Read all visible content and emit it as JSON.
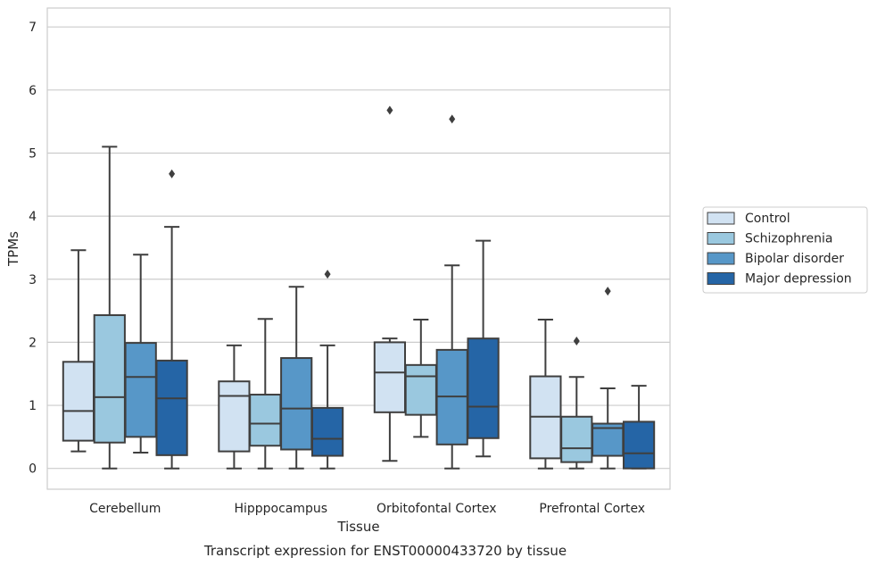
{
  "chart_data": {
    "type": "box",
    "title": "",
    "caption": "Transcript expression for ENST00000433720 by tissue",
    "xlabel": "Tissue",
    "ylabel": "TPMs",
    "ylim": [
      -0.33,
      7.3
    ],
    "yticks": [
      0,
      1,
      2,
      3,
      4,
      5,
      6,
      7
    ],
    "grid": "horizontal",
    "legend_position": "right",
    "categories": [
      "Cerebellum",
      "Hipppocampus",
      "Orbitofontal Cortex",
      "Prefrontal Cortex"
    ],
    "series": [
      {
        "name": "Control",
        "color": "#d1e2f2",
        "boxes": [
          {
            "whislo": 0.27,
            "q1": 0.44,
            "med": 0.91,
            "q3": 1.69,
            "whishi": 3.46,
            "fliers": []
          },
          {
            "whislo": 0.0,
            "q1": 0.27,
            "med": 1.15,
            "q3": 1.38,
            "whishi": 1.95,
            "fliers": []
          },
          {
            "whislo": 0.12,
            "q1": 0.89,
            "med": 1.52,
            "q3": 2.0,
            "whishi": 2.06,
            "fliers": [
              5.68
            ]
          },
          {
            "whislo": 0.0,
            "q1": 0.16,
            "med": 0.82,
            "q3": 1.46,
            "whishi": 2.36,
            "fliers": []
          }
        ]
      },
      {
        "name": "Schizophrenia",
        "color": "#9ac8df",
        "boxes": [
          {
            "whislo": 0.0,
            "q1": 0.41,
            "med": 1.13,
            "q3": 2.43,
            "whishi": 5.1,
            "fliers": []
          },
          {
            "whislo": 0.0,
            "q1": 0.36,
            "med": 0.71,
            "q3": 1.17,
            "whishi": 2.37,
            "fliers": []
          },
          {
            "whislo": 0.5,
            "q1": 0.85,
            "med": 1.46,
            "q3": 1.64,
            "whishi": 2.36,
            "fliers": []
          },
          {
            "whislo": 0.0,
            "q1": 0.1,
            "med": 0.32,
            "q3": 0.82,
            "whishi": 1.45,
            "fliers": [
              2.02
            ]
          }
        ]
      },
      {
        "name": "Bipolar disorder",
        "color": "#5797c8",
        "boxes": [
          {
            "whislo": 0.25,
            "q1": 0.5,
            "med": 1.45,
            "q3": 1.99,
            "whishi": 3.39,
            "fliers": []
          },
          {
            "whislo": 0.0,
            "q1": 0.3,
            "med": 0.95,
            "q3": 1.75,
            "whishi": 2.88,
            "fliers": []
          },
          {
            "whislo": 0.0,
            "q1": 0.38,
            "med": 1.14,
            "q3": 1.88,
            "whishi": 3.22,
            "fliers": [
              5.54
            ]
          },
          {
            "whislo": 0.0,
            "q1": 0.2,
            "med": 0.64,
            "q3": 0.71,
            "whishi": 1.27,
            "fliers": [
              2.81
            ]
          }
        ]
      },
      {
        "name": "Major depression",
        "color": "#2565a6",
        "boxes": [
          {
            "whislo": 0.0,
            "q1": 0.21,
            "med": 1.11,
            "q3": 1.71,
            "whishi": 3.83,
            "fliers": [
              4.67
            ]
          },
          {
            "whislo": 0.0,
            "q1": 0.2,
            "med": 0.47,
            "q3": 0.96,
            "whishi": 1.95,
            "fliers": [
              3.08
            ]
          },
          {
            "whislo": 0.19,
            "q1": 0.48,
            "med": 0.98,
            "q3": 2.06,
            "whishi": 3.61,
            "fliers": []
          },
          {
            "whislo": 0.0,
            "q1": 0.0,
            "med": 0.24,
            "q3": 0.74,
            "whishi": 1.31,
            "fliers": []
          }
        ]
      }
    ]
  }
}
